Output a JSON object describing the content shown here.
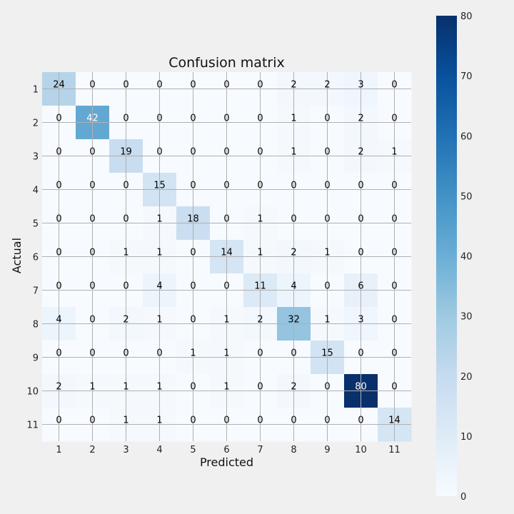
{
  "chart_data": {
    "type": "heatmap",
    "title": "Confusion matrix",
    "xlabel": "Predicted",
    "ylabel": "Actual",
    "labels": [
      "1",
      "2",
      "3",
      "4",
      "5",
      "6",
      "7",
      "8",
      "9",
      "10",
      "11"
    ],
    "matrix": [
      [
        24,
        0,
        0,
        0,
        0,
        0,
        0,
        2,
        2,
        3,
        0
      ],
      [
        0,
        42,
        0,
        0,
        0,
        0,
        0,
        1,
        0,
        2,
        0
      ],
      [
        0,
        0,
        19,
        0,
        0,
        0,
        0,
        1,
        0,
        2,
        1
      ],
      [
        0,
        0,
        0,
        15,
        0,
        0,
        0,
        0,
        0,
        0,
        0
      ],
      [
        0,
        0,
        0,
        1,
        18,
        0,
        1,
        0,
        0,
        0,
        0
      ],
      [
        0,
        0,
        1,
        1,
        0,
        14,
        1,
        2,
        1,
        0,
        0
      ],
      [
        0,
        0,
        0,
        4,
        0,
        0,
        11,
        4,
        0,
        6,
        0
      ],
      [
        4,
        0,
        2,
        1,
        0,
        1,
        2,
        32,
        1,
        3,
        0
      ],
      [
        0,
        0,
        0,
        0,
        1,
        1,
        0,
        0,
        15,
        0,
        0
      ],
      [
        2,
        1,
        1,
        1,
        0,
        1,
        0,
        2,
        0,
        80,
        0
      ],
      [
        0,
        0,
        1,
        1,
        0,
        0,
        0,
        0,
        0,
        0,
        14
      ]
    ],
    "colormap": "Blues",
    "vmin": 0,
    "vmax": 80,
    "colorbar_ticks": [
      "0",
      "10",
      "20",
      "30",
      "40",
      "50",
      "60",
      "70",
      "80"
    ],
    "grid": true
  }
}
